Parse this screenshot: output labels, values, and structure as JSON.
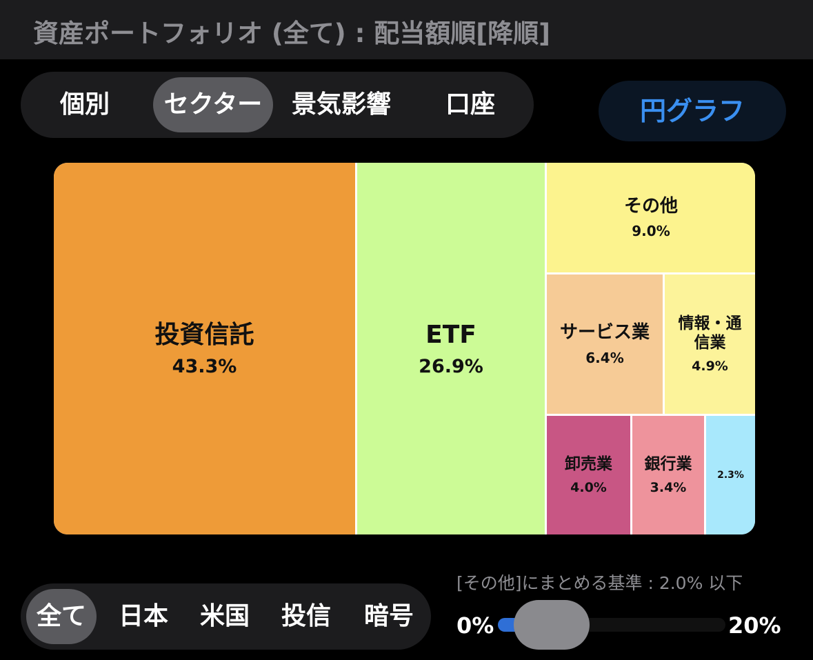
{
  "header": {
    "title": "資産ポートフォリオ (全て) : 配当額順[降順]"
  },
  "top_tabs": [
    {
      "label": "個別",
      "active": false
    },
    {
      "label": "セクター",
      "active": true
    },
    {
      "label": "景気影響",
      "active": false
    },
    {
      "label": "口座",
      "active": false
    }
  ],
  "pie_button": {
    "label": "円グラフ"
  },
  "treemap": {
    "cells": [
      {
        "label": "投資信託",
        "value": "43.3%",
        "color": "#ee9b38"
      },
      {
        "label": "ETF",
        "value": "26.9%",
        "color": "#ccfb96"
      },
      {
        "label": "その他",
        "value": "9.0%",
        "color": "#fcf38e"
      },
      {
        "label": "サービス業",
        "value": "6.4%",
        "color": "#f6cb96"
      },
      {
        "label": "情報・通\n信業",
        "value": "4.9%",
        "color": "#fcf39a"
      },
      {
        "label": "卸売業",
        "value": "4.0%",
        "color": "#c85684"
      },
      {
        "label": "銀行業",
        "value": "3.4%",
        "color": "#ee939c"
      },
      {
        "label": "",
        "value": "2.3%",
        "color": "#a8e8fc"
      }
    ]
  },
  "bottom_tabs": [
    {
      "label": "全て",
      "active": true
    },
    {
      "label": "日本",
      "active": false
    },
    {
      "label": "米国",
      "active": false
    },
    {
      "label": "投信",
      "active": false
    },
    {
      "label": "暗号",
      "active": false
    }
  ],
  "threshold": {
    "caption": "[その他]にまとめる基準 : 2.0% 以下",
    "min_label": "0%",
    "max_label": "20%",
    "value_fraction": 0.1
  }
}
